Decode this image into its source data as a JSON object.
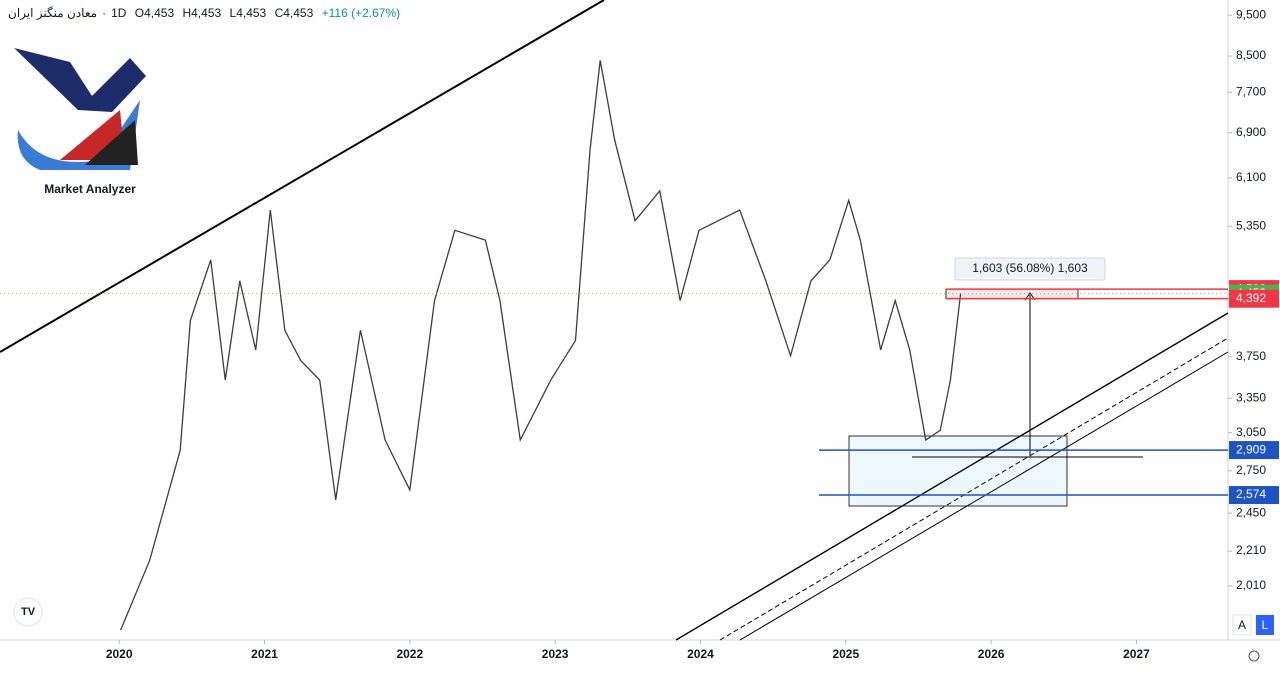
{
  "chart_data": {
    "type": "line",
    "header": {
      "symbol": "معادن منگنز ایران",
      "interval": "1D",
      "open": "O4,453",
      "high": "H4,453",
      "low": "L4,453",
      "close": "C4,453",
      "change": "+116 (+2.67%)"
    },
    "logo_text": "Market Analyzer",
    "measure_label": "1,603 (56.08%) 1,603",
    "scale_buttons": [
      "A",
      "L"
    ],
    "x": [
      2020.01,
      2020.21,
      2020.42,
      2020.49,
      2020.63,
      2020.73,
      2020.83,
      2020.94,
      2021.04,
      2021.14,
      2021.25,
      2021.38,
      2021.49,
      2021.66,
      2021.83,
      2022.0,
      2022.17,
      2022.31,
      2022.52,
      2022.62,
      2022.76,
      2022.97,
      2023.14,
      2023.24,
      2023.31,
      2023.41,
      2023.55,
      2023.72,
      2023.86,
      2023.99,
      2024.27,
      2024.45,
      2024.62,
      2024.76,
      2024.89,
      2025.02,
      2025.1,
      2025.24,
      2025.34,
      2025.44,
      2025.55,
      2025.65,
      2025.72,
      2025.79
    ],
    "series": [
      {
        "color": "#3d3d3d",
        "values": [
          1782,
          2155,
          2908,
          4140,
          4880,
          3520,
          4610,
          3820,
          5590,
          4030,
          3710,
          3520,
          2540,
          4030,
          2990,
          2610,
          4370,
          5290,
          5150,
          4370,
          2990,
          3520,
          3920,
          6580,
          8400,
          6760,
          5430,
          5890,
          4370,
          5290,
          5590,
          4610,
          3760,
          4610,
          4880,
          5740,
          5150,
          3820,
          4370,
          3820,
          2990,
          3070,
          3520,
          4453
        ]
      }
    ],
    "log_scale": true,
    "xlim": [
      2019.18,
      2027.63
    ],
    "xticks": [
      2020,
      2021,
      2022,
      2023,
      2024,
      2025,
      2026,
      2027
    ],
    "ylim": [
      1735,
      9900
    ],
    "yticks": [
      {
        "value": 9500,
        "label": "9,500"
      },
      {
        "value": 8500,
        "label": "8,500"
      },
      {
        "value": 7700,
        "label": "7,700"
      },
      {
        "value": 6900,
        "label": "6,900"
      },
      {
        "value": 6100,
        "label": "6,100"
      },
      {
        "value": 5350,
        "label": "5,350"
      },
      {
        "value": 3750,
        "label": "3,750"
      },
      {
        "value": 3350,
        "label": "3,350"
      },
      {
        "value": 3050,
        "label": "3,050"
      },
      {
        "value": 2750,
        "label": "2,750"
      },
      {
        "value": 2450,
        "label": "2,450"
      },
      {
        "value": 2210,
        "label": "2,210"
      },
      {
        "value": 2010,
        "label": "2,010"
      }
    ],
    "price_labels": [
      {
        "value": 4508,
        "label": "4,508",
        "color": "#f23645"
      },
      {
        "value": 4453,
        "label": "4,453",
        "color": "#4caf50"
      },
      {
        "value": 4392,
        "label": "4,392",
        "color": "#f23645"
      },
      {
        "value": 2909,
        "label": "2,909",
        "color": "#1e53c4"
      },
      {
        "value": 2574,
        "label": "2,574",
        "color": "#1e53c4"
      }
    ]
  }
}
